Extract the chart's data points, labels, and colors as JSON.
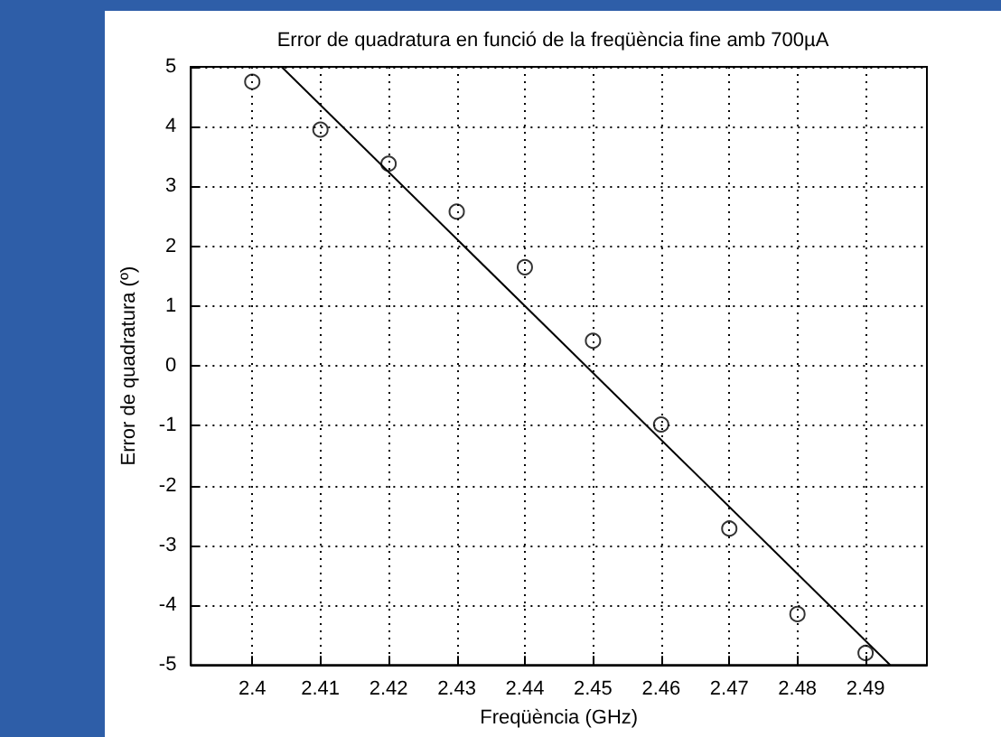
{
  "chart_data": {
    "type": "scatter",
    "title": "Error de quadratura en funció de la freqüència fine amb 700µA",
    "xlabel": "Freqüència (GHz)",
    "ylabel": "Error de quadratura (º)",
    "x": [
      2.4,
      2.41,
      2.42,
      2.43,
      2.44,
      2.45,
      2.46,
      2.47,
      2.48,
      2.49
    ],
    "series": [
      {
        "color": "#000000",
        "marker": "circle",
        "values": [
          4.75,
          3.95,
          3.38,
          2.58,
          1.65,
          0.42,
          -0.98,
          -2.72,
          -4.15,
          -4.8
        ]
      },
      {
        "type": "line",
        "color": "#000000",
        "marker": "none",
        "line_style": "solid",
        "x": [
          2.4043,
          2.4936
        ],
        "values": [
          5,
          -5
        ]
      }
    ],
    "xlim": [
      2.391,
      2.499
    ],
    "xticks": [
      2.4,
      2.41,
      2.42,
      2.43,
      2.44,
      2.45,
      2.46,
      2.47,
      2.48,
      2.49
    ],
    "ylim": [
      -5,
      5
    ],
    "yticks": [
      -5,
      -4,
      -3,
      -2,
      -1,
      0,
      1,
      2,
      3,
      4,
      5
    ],
    "grid": true
  }
}
